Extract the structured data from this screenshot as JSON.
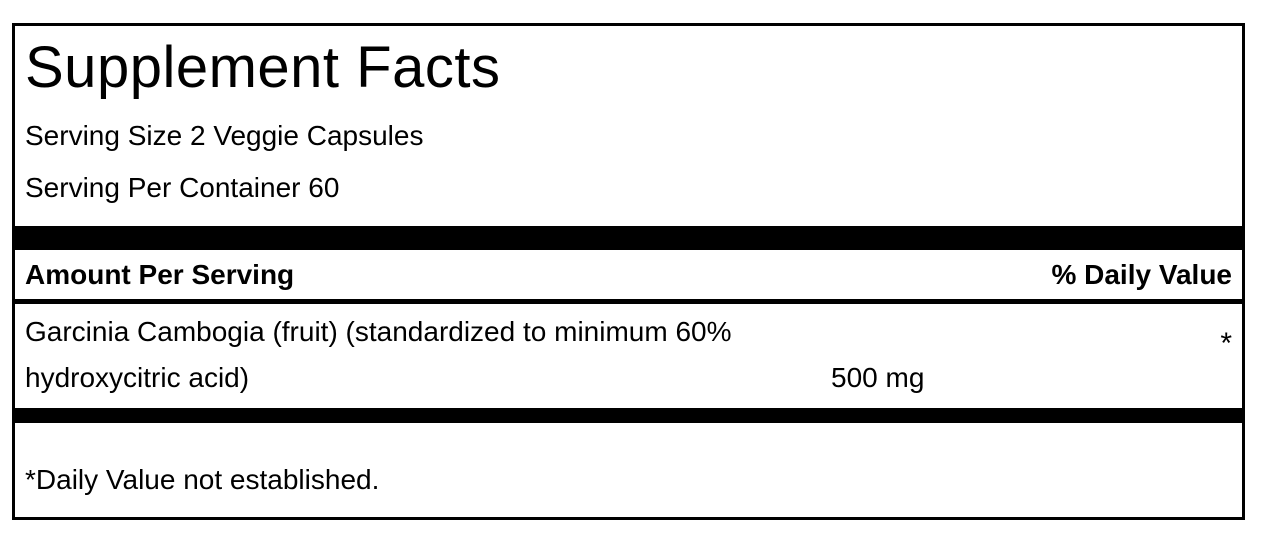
{
  "panel": {
    "title": "Supplement Facts",
    "serving_size": "Serving Size 2 Veggie Capsules",
    "servings_per_container": "Serving Per Container 60",
    "column_headers": {
      "amount": "Amount Per Serving",
      "daily_value": "% Daily Value"
    },
    "ingredients": [
      {
        "name": "Garcinia Cambogia (fruit) (standardized to minimum 60% hydroxycitric acid)",
        "amount": "500 mg",
        "daily_value": "*"
      }
    ],
    "footnote": "*Daily Value not established.",
    "colors": {
      "text": "#000000",
      "background": "#ffffff",
      "separator_bar": "#000000",
      "border": "#000000"
    }
  }
}
